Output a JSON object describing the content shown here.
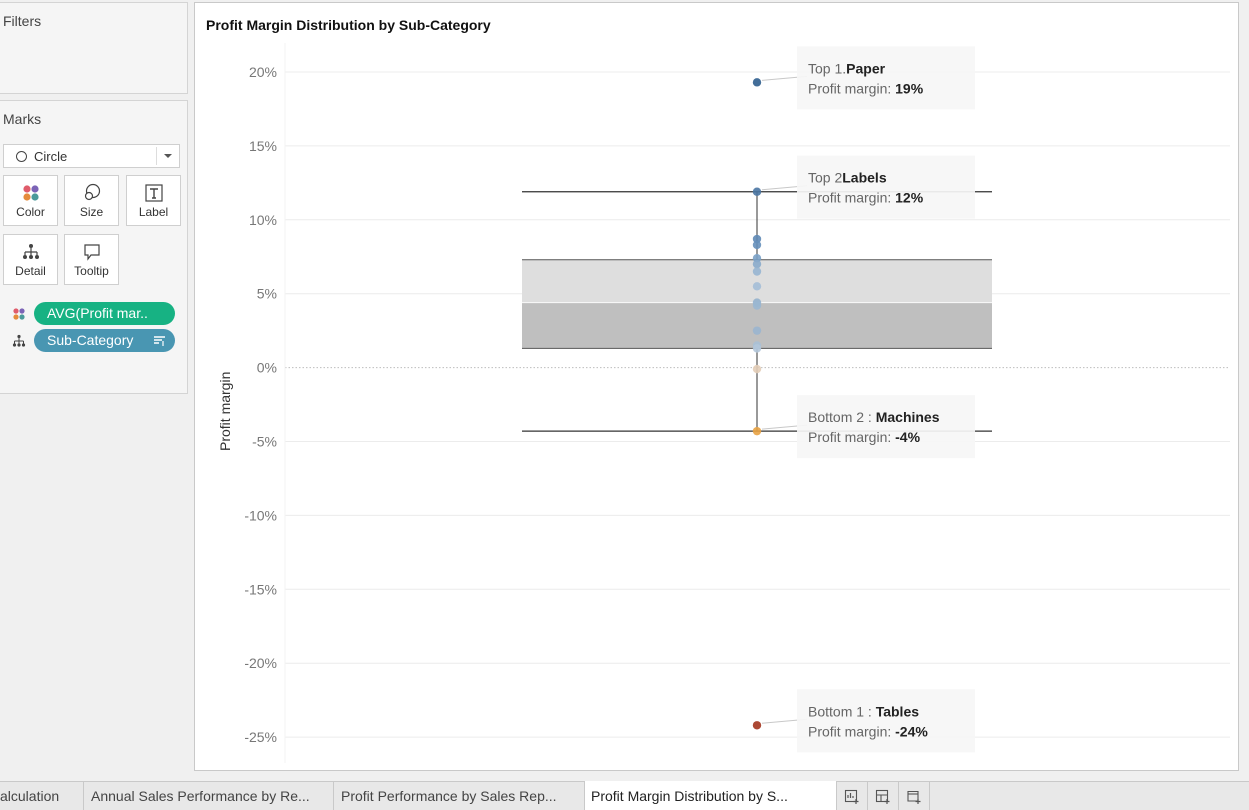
{
  "panes": {
    "filters_title": "Filters",
    "marks_title": "Marks",
    "mark_type": "Circle",
    "mark_buttons": [
      "Color",
      "Size",
      "Label",
      "Detail",
      "Tooltip"
    ],
    "pills": [
      {
        "label": "AVG(Profit mar..",
        "color": "#17b283",
        "role": "color"
      },
      {
        "label": "Sub-Category",
        "color": "#4996b2",
        "role": "detail"
      }
    ]
  },
  "sheet": {
    "title": "Profit Margin Distribution by Sub-Category"
  },
  "chart_data": {
    "type": "scatter",
    "title": "Profit Margin Distribution by Sub-Category",
    "ylabel": "Profit margin",
    "xlabel": "",
    "ylim": [
      -26,
      21
    ],
    "y_ticks": [
      "20%",
      "15%",
      "10%",
      "5%",
      "0%",
      "-5%",
      "-10%",
      "-15%",
      "-20%",
      "-25%"
    ],
    "y_tick_values": [
      20,
      15,
      10,
      5,
      0,
      -5,
      -10,
      -15,
      -20,
      -25
    ],
    "points": [
      {
        "value": 19.3,
        "color": "#2f5e8e"
      },
      {
        "value": 11.9,
        "color": "#4a76a3"
      },
      {
        "value": 8.7,
        "color": "#5f8ab6"
      },
      {
        "value": 8.3,
        "color": "#6690bb"
      },
      {
        "value": 7.4,
        "color": "#7aa1c6"
      },
      {
        "value": 7.0,
        "color": "#8aabcb"
      },
      {
        "value": 6.5,
        "color": "#97b5d2"
      },
      {
        "value": 5.5,
        "color": "#a4bed7"
      },
      {
        "value": 4.4,
        "color": "#93b1cd"
      },
      {
        "value": 4.2,
        "color": "#9ab7d2"
      },
      {
        "value": 2.5,
        "color": "#9ab5cf"
      },
      {
        "value": 1.5,
        "color": "#a9c0d6"
      },
      {
        "value": 1.3,
        "color": "#b3c7da"
      },
      {
        "value": -0.1,
        "color": "#e3cdb7"
      },
      {
        "value": -4.3,
        "color": "#e8a243"
      },
      {
        "value": -24.2,
        "color": "#a3341e"
      }
    ],
    "boxplot": {
      "whisker_high": 11.9,
      "upper_quartile": 7.3,
      "median": 4.4,
      "lower_quartile": 1.3,
      "whisker_low": -4.3
    },
    "annotations": [
      {
        "prefix": "Top 1.",
        "name": "Paper",
        "line2_prefix": "Profit margin: ",
        "value_label": "19%",
        "value": 19.3
      },
      {
        "prefix": "Top 2",
        "name": "Labels",
        "line2_prefix": "Profit margin: ",
        "value_label": "12%",
        "value": 11.9
      },
      {
        "prefix": "Bottom 2 : ",
        "name": "Machines",
        "line2_prefix": "Profit margin: ",
        "value_label": "-4%",
        "value": -4.3
      },
      {
        "prefix": "Bottom 1 : ",
        "name": "Tables",
        "line2_prefix": "Profit margin: ",
        "value_label": "-24%",
        "value": -24.2
      }
    ],
    "grid": true,
    "zero_line": "dotted"
  },
  "tabs": [
    {
      "label": "alculation",
      "active": false
    },
    {
      "label": "Annual Sales Performance by Re...",
      "active": false
    },
    {
      "label": "Profit Performance by Sales Rep...",
      "active": false
    },
    {
      "label": "Profit Margin Distribution by S...",
      "active": true
    }
  ],
  "tab_buttons": [
    "new-worksheet-icon",
    "new-dashboard-icon",
    "new-story-icon"
  ]
}
